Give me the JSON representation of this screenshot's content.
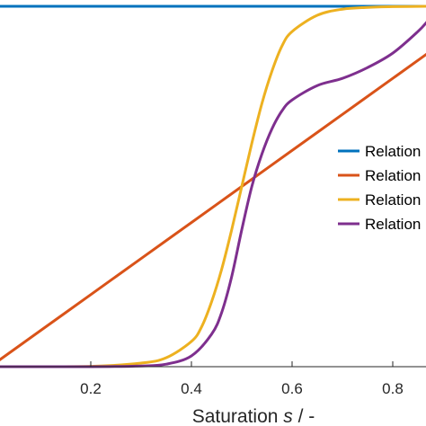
{
  "chart_data": {
    "type": "line",
    "xlabel": "Saturation s / -",
    "xlabel_parts": {
      "main": "Saturation ",
      "var": "s",
      "unit": " / -"
    },
    "ylabel": "",
    "xlim": [
      0,
      0.87
    ],
    "ylim": [
      0,
      1
    ],
    "xticks": [
      0.2,
      0.4,
      0.6,
      0.8
    ],
    "xtick_labels": [
      "0.2",
      "0.4",
      "0.6",
      "0.8"
    ],
    "grid": false,
    "legend_placement": "right",
    "series": [
      {
        "name": "Relation",
        "color": "#0072BD",
        "x": [
          0,
          0.1,
          0.2,
          0.3,
          0.4,
          0.5,
          0.6,
          0.7,
          0.8,
          0.87
        ],
        "y": [
          1,
          1,
          1,
          1,
          1,
          1,
          1,
          1,
          1,
          1
        ]
      },
      {
        "name": "Relation",
        "color": "#D95319",
        "x": [
          0,
          0.1,
          0.2,
          0.3,
          0.4,
          0.5,
          0.6,
          0.7,
          0.8,
          0.87
        ],
        "y": [
          0,
          0.1,
          0.2,
          0.3,
          0.4,
          0.5,
          0.6,
          0.7,
          0.8,
          0.87
        ]
      },
      {
        "name": "Relation",
        "color": "#EDB120",
        "x": [
          0,
          0.2,
          0.3,
          0.35,
          0.4,
          0.42,
          0.44,
          0.46,
          0.48,
          0.5,
          0.52,
          0.54,
          0.56,
          0.58,
          0.6,
          0.65,
          0.7,
          0.75,
          0.8,
          0.87
        ],
        "y": [
          0,
          0.001,
          0.01,
          0.025,
          0.07,
          0.11,
          0.18,
          0.27,
          0.38,
          0.5,
          0.62,
          0.73,
          0.82,
          0.89,
          0.93,
          0.975,
          0.992,
          0.997,
          0.999,
          1.0
        ]
      },
      {
        "name": "Relation",
        "color": "#7E2F8E",
        "x": [
          0,
          0.2,
          0.3,
          0.35,
          0.4,
          0.44,
          0.46,
          0.48,
          0.5,
          0.52,
          0.54,
          0.56,
          0.58,
          0.6,
          0.65,
          0.7,
          0.75,
          0.8,
          0.85,
          0.87
        ],
        "y": [
          0,
          0.0,
          0.002,
          0.007,
          0.03,
          0.09,
          0.15,
          0.25,
          0.38,
          0.5,
          0.59,
          0.66,
          0.71,
          0.74,
          0.78,
          0.8,
          0.83,
          0.87,
          0.93,
          0.96
        ]
      }
    ]
  }
}
